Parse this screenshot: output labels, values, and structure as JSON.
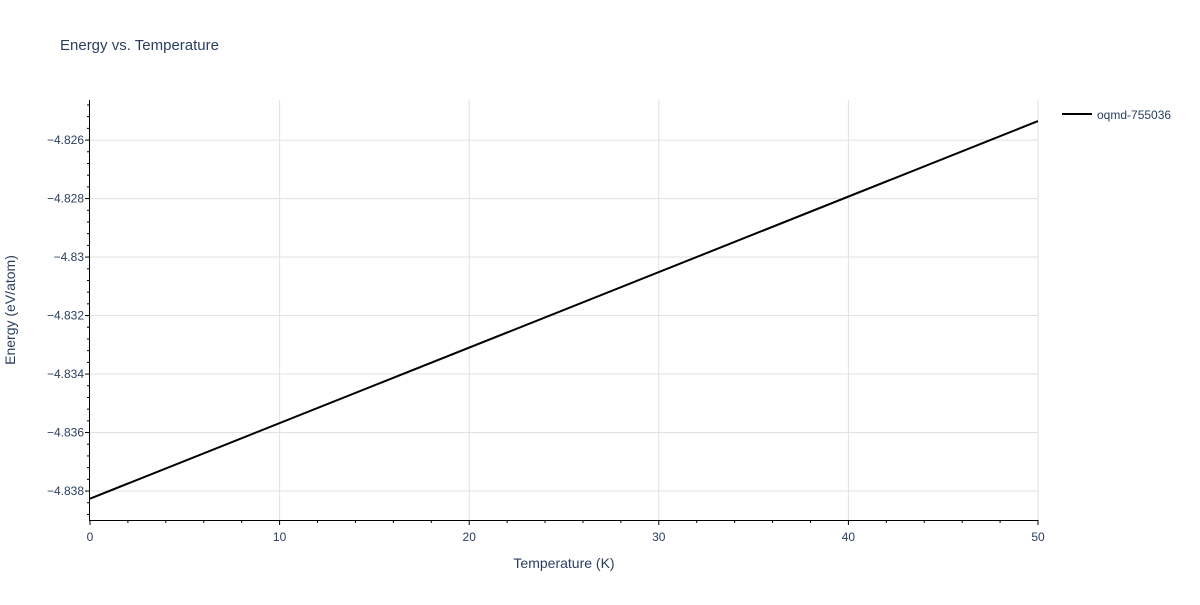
{
  "chart_data": {
    "type": "line",
    "title": "Energy vs. Temperature",
    "xlabel": "Temperature (K)",
    "ylabel": "Energy (eV/atom)",
    "xlim": [
      0,
      50
    ],
    "ylim": [
      -4.83899,
      -4.82463
    ],
    "xticks": [
      0,
      10,
      20,
      30,
      40,
      50
    ],
    "xtick_labels": [
      "0",
      "10",
      "20",
      "30",
      "40",
      "50"
    ],
    "yticks": [
      -4.838,
      -4.836,
      -4.834,
      -4.832,
      -4.83,
      -4.828,
      -4.826
    ],
    "ytick_labels": [
      "−4.838",
      "−4.836",
      "−4.834",
      "−4.832",
      "−4.83",
      "−4.828",
      "−4.826"
    ],
    "grid": true,
    "legend_position": "top-right",
    "series": [
      {
        "name": "oqmd-755036",
        "color": "#000000",
        "x": [
          0,
          50
        ],
        "y": [
          -4.83826,
          -4.82535
        ]
      }
    ]
  }
}
